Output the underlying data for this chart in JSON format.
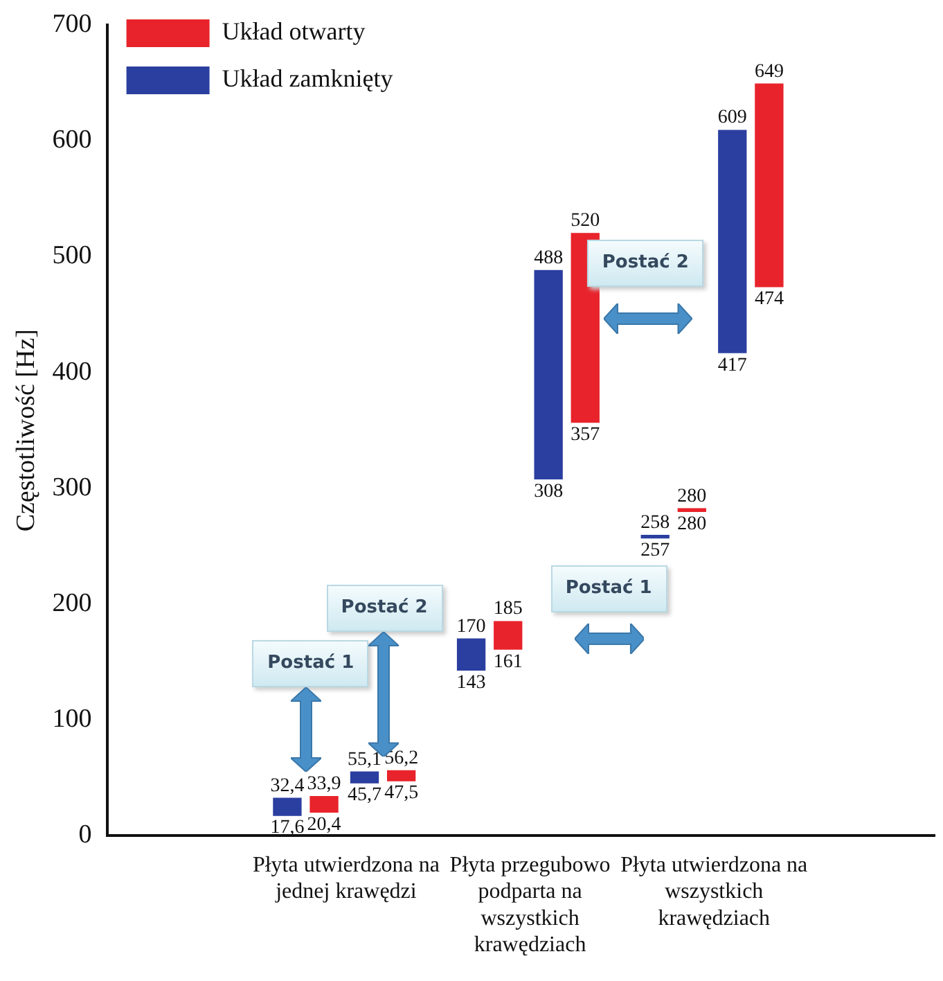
{
  "chart_data": {
    "type": "bar",
    "ylabel": "Częstotliwość [Hz]",
    "categories": [
      "Płyta utwierdzona na jednej krawędzi",
      "Płyta przegubowo podparta na wszystkich krawędziach",
      "Płyta utwierdzona na wszystkich krawędziach"
    ],
    "ylim": [
      0,
      700
    ],
    "yticks": [
      0,
      100,
      200,
      300,
      400,
      500,
      600,
      700
    ],
    "grid": false,
    "legend": "top left",
    "series": [
      {
        "name": "Układ zamknięty",
        "color": "#2b3fa0",
        "base": [
          17.6,
          143,
          257
        ],
        "values": [
          14.8,
          27,
          1
        ],
        "value_labels": [
          [
            "17,6",
            "32,4"
          ],
          [
            "143",
            "170"
          ],
          [
            "257",
            "258"
          ]
        ]
      },
      {
        "name": "Układ otwarty",
        "color": "#e8232b",
        "base": [
          20.4,
          161,
          280
        ],
        "values": [
          13.5,
          24,
          0
        ],
        "value_labels": [
          [
            "20,4",
            "33,9"
          ],
          [
            "161",
            "185"
          ],
          [
            "280",
            "280"
          ]
        ]
      },
      {
        "color": "#2b3fa0",
        "base": [
          45.7,
          308,
          417
        ],
        "values": [
          9.4,
          180,
          192
        ],
        "value_labels": [
          [
            "45,7",
            "55,1"
          ],
          [
            "308",
            "488"
          ],
          [
            "417",
            "609"
          ]
        ]
      },
      {
        "color": "#e8232b",
        "base": [
          47.5,
          357,
          474
        ],
        "values": [
          8.7,
          163,
          175
        ],
        "value_labels": [
          [
            "47,5",
            "56,2"
          ],
          [
            "357",
            "520"
          ],
          [
            "474",
            "649"
          ]
        ]
      }
    ],
    "annotations": [
      "Postać 1",
      "Postać 2",
      "Postać 1",
      "Postać 2"
    ]
  }
}
